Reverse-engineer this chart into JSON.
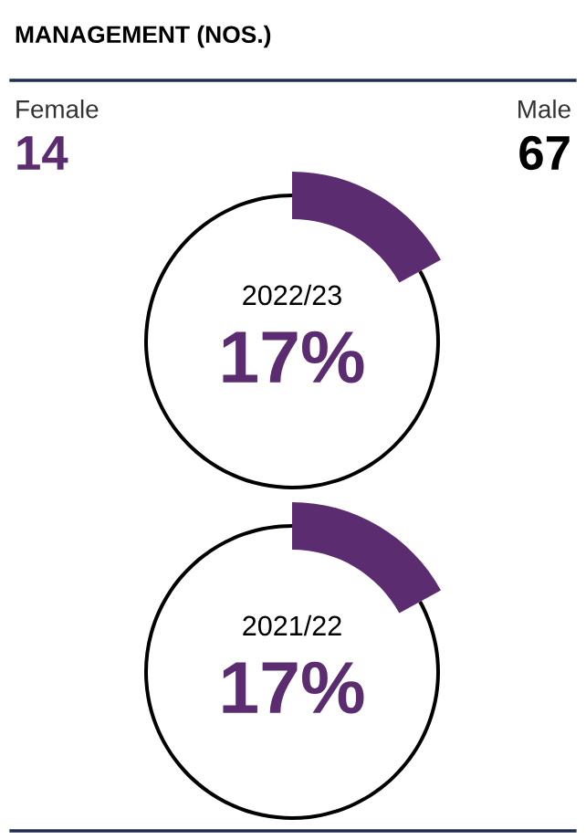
{
  "chart_data": [
    {
      "type": "donut",
      "title": "MANAGEMENT (NOS.)",
      "subtitle": "2022/23",
      "categories": [
        null,
        null
      ],
      "values": [
        17,
        83
      ],
      "colors": [
        "#5b2c6f",
        "#000000"
      ],
      "annotations": [
        "17%",
        "Female",
        "14",
        "Male",
        "67"
      ]
    },
    {
      "type": "donut",
      "subtitle": "2021/22",
      "categories": [
        null,
        null
      ],
      "values": [
        17,
        83
      ],
      "colors": [
        "#5b2c6f",
        "#000000"
      ],
      "annotations": [
        "17%"
      ]
    }
  ]
}
